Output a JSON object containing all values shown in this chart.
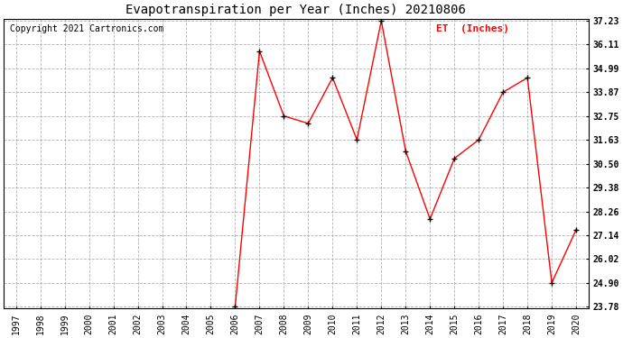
{
  "title": "Evapotranspiration per Year (Inches) 20210806",
  "copyright": "Copyright 2021 Cartronics.com",
  "legend_label": "ET  (Inches)",
  "years": [
    1997,
    1998,
    1999,
    2000,
    2001,
    2002,
    2003,
    2004,
    2005,
    2006,
    2007,
    2008,
    2009,
    2010,
    2011,
    2012,
    2013,
    2014,
    2015,
    2016,
    2017,
    2018,
    2019,
    2020
  ],
  "et_values": [
    null,
    null,
    null,
    null,
    null,
    null,
    null,
    null,
    null,
    23.78,
    35.8,
    32.75,
    32.4,
    34.55,
    31.63,
    37.23,
    31.1,
    27.9,
    30.75,
    31.63,
    33.87,
    34.55,
    24.9,
    27.4
  ],
  "y_ticks": [
    23.78,
    24.9,
    26.02,
    27.14,
    28.26,
    29.38,
    30.5,
    31.63,
    32.75,
    33.87,
    34.99,
    36.11,
    37.23
  ],
  "ylim_min": 23.78,
  "ylim_max": 37.23,
  "line_color": "red",
  "marker": "+",
  "marker_color": "black",
  "grid_color": "#aaaaaa",
  "bg_color": "white",
  "title_fontsize": 10,
  "copyright_fontsize": 7,
  "legend_color": "red",
  "legend_fontsize": 8,
  "tick_label_fontsize": 7,
  "ytick_label_fontsize": 7
}
